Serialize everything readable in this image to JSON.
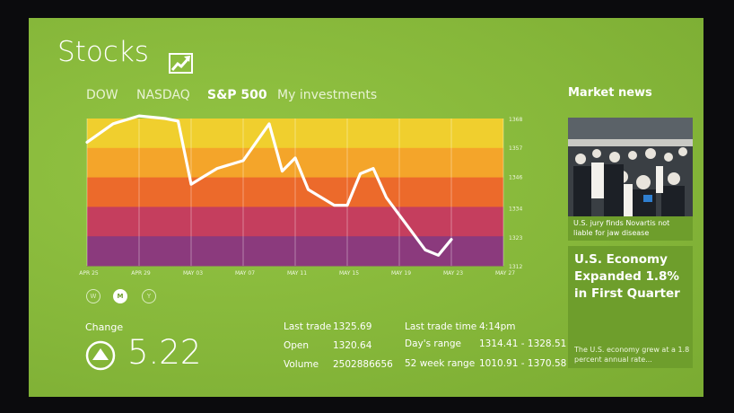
{
  "app": {
    "title": "Stocks",
    "icon": "trend-chart-icon",
    "background_color": "#86b73a"
  },
  "tabs": [
    {
      "label": "DOW",
      "active": false
    },
    {
      "label": "NASDAQ",
      "active": false
    },
    {
      "label": "S&P 500",
      "active": true
    },
    {
      "label": "My investments",
      "active": false
    }
  ],
  "chart_data": {
    "type": "line",
    "series": [
      {
        "x": [
          "Apr 25",
          "Apr 27",
          "Apr 29",
          "May 01",
          "May 02",
          "May 03",
          "May 04",
          "May 05",
          "May 07",
          "May 09",
          "May 10",
          "May 11",
          "May 12",
          "May 14",
          "May 15",
          "May 16",
          "May 17",
          "May 18",
          "May 21",
          "May 22",
          "May 23"
        ],
        "values": [
          1359,
          1366,
          1369,
          1368,
          1367,
          1343,
          1346,
          1349,
          1352,
          1366,
          1348,
          1353,
          1341,
          1335,
          1335,
          1347,
          1349,
          1338,
          1318,
          1316,
          1322
        ]
      }
    ],
    "yticks": [
      "1368",
      "1357",
      "1346",
      "1334",
      "1323",
      "1312"
    ],
    "xticks": [
      "APR 25",
      "APR 29",
      "MAY 03",
      "MAY 07",
      "MAY 11",
      "MAY 15",
      "MAY 19",
      "MAY 23",
      "MAY 27"
    ],
    "ylim": [
      1312,
      1368
    ],
    "grid": true,
    "band_colors": [
      "#f0cf2e",
      "#f4a52a",
      "#ec6a2b",
      "#c53e5e",
      "#8b3a7d"
    ],
    "line_color": "#ffffff"
  },
  "range_buttons": [
    {
      "label": "W",
      "active": false
    },
    {
      "label": "M",
      "active": true
    },
    {
      "label": "Y",
      "active": false
    }
  ],
  "change": {
    "label": "Change",
    "value": "5.22",
    "direction_icon": "up-arrow-circle-icon"
  },
  "stats": {
    "last_trade_label": "Last trade",
    "last_trade": "1325.69",
    "open_label": "Open",
    "open": "1320.64",
    "volume_label": "Volume",
    "volume": "2502886656",
    "last_trade_time_label": "Last trade time",
    "last_trade_time": "4:14pm",
    "days_range_label": "Day's range",
    "days_range": "1314.41 - 1328.51",
    "week52_label": "52 week range",
    "week52": "1010.91 - 1370.58"
  },
  "news": {
    "heading": "Market news",
    "items": [
      {
        "caption": "U.S. jury finds Novartis not liable for jaw disease",
        "image": "trading-floor-photo"
      },
      {
        "headline": "U.S. Economy Expanded 1.8% in First Quarter",
        "summary": "The U.S. economy grew at a 1.8 percent annual rate..."
      }
    ]
  }
}
